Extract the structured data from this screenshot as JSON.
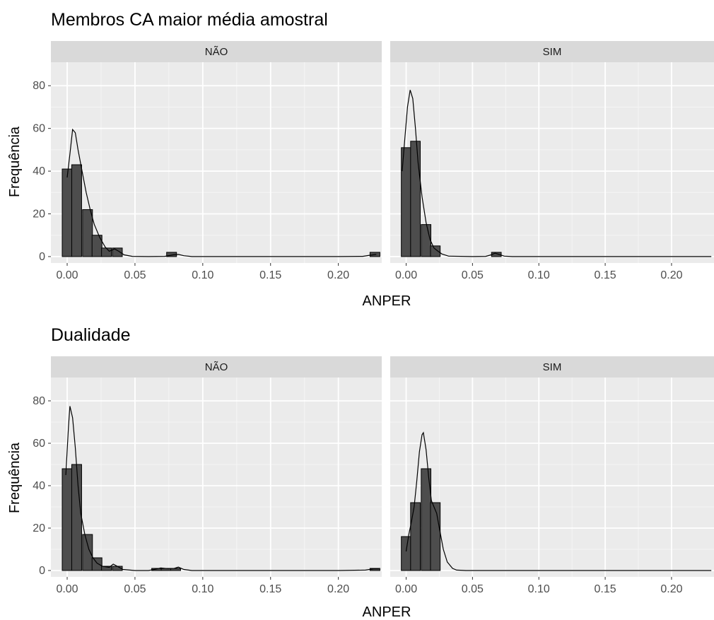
{
  "chart_data": [
    {
      "type": "bar",
      "title": "Membros CA maior média amostral",
      "xlabel": "ANPER",
      "ylabel": "Frequência",
      "xlim": [
        -0.012,
        0.232
      ],
      "ylim": [
        -3,
        91
      ],
      "x_ticks": [
        0,
        0.05,
        0.1,
        0.15,
        0.2
      ],
      "x_tick_labels": [
        "0.00",
        "0.05",
        "0.10",
        "0.15",
        "0.20"
      ],
      "y_ticks": [
        0,
        20,
        40,
        60,
        80
      ],
      "y_tick_labels": [
        "0",
        "20",
        "40",
        "60",
        "80"
      ],
      "bin_width": 0.0073,
      "grid": true,
      "facets": [
        {
          "label": "NÃO",
          "bins": [
            {
              "x": 0.0,
              "count": 41
            },
            {
              "x": 0.007,
              "count": 43
            },
            {
              "x": 0.015,
              "count": 22
            },
            {
              "x": 0.022,
              "count": 10
            },
            {
              "x": 0.029,
              "count": 4
            },
            {
              "x": 0.037,
              "count": 4
            },
            {
              "x": 0.077,
              "count": 2
            },
            {
              "x": 0.227,
              "count": 2
            }
          ],
          "density": [
            [
              0,
              37
            ],
            [
              0.002,
              48
            ],
            [
              0.004,
              59.5
            ],
            [
              0.006,
              58
            ],
            [
              0.008,
              50
            ],
            [
              0.011,
              40
            ],
            [
              0.014,
              30
            ],
            [
              0.017,
              22
            ],
            [
              0.02,
              15
            ],
            [
              0.024,
              9
            ],
            [
              0.028,
              4.5
            ],
            [
              0.031,
              2.5
            ],
            [
              0.035,
              3.6
            ],
            [
              0.038,
              2.5
            ],
            [
              0.042,
              0.8
            ],
            [
              0.048,
              0.1
            ],
            [
              0.06,
              0
            ],
            [
              0.072,
              0.1
            ],
            [
              0.078,
              0.8
            ],
            [
              0.082,
              1
            ],
            [
              0.086,
              0.4
            ],
            [
              0.092,
              0
            ],
            [
              0.12,
              0
            ],
            [
              0.16,
              0
            ],
            [
              0.2,
              0
            ],
            [
              0.218,
              0.1
            ],
            [
              0.223,
              0.6
            ],
            [
              0.228,
              1
            ]
          ]
        },
        {
          "label": "SIM",
          "bins": [
            {
              "x": 0.0,
              "count": 51
            },
            {
              "x": 0.007,
              "count": 54
            },
            {
              "x": 0.015,
              "count": 15
            },
            {
              "x": 0.022,
              "count": 5
            },
            {
              "x": 0.068,
              "count": 2
            }
          ],
          "density": [
            [
              -0.003,
              40
            ],
            [
              -0.001,
              55
            ],
            [
              0.001,
              70
            ],
            [
              0.003,
              78
            ],
            [
              0.005,
              74
            ],
            [
              0.007,
              60
            ],
            [
              0.009,
              44
            ],
            [
              0.012,
              28
            ],
            [
              0.015,
              16
            ],
            [
              0.018,
              8
            ],
            [
              0.021,
              4
            ],
            [
              0.024,
              2.5
            ],
            [
              0.027,
              1.2
            ],
            [
              0.032,
              0.2
            ],
            [
              0.05,
              0
            ],
            [
              0.06,
              0.1
            ],
            [
              0.064,
              0.8
            ],
            [
              0.067,
              1.6
            ],
            [
              0.07,
              1
            ],
            [
              0.074,
              0.2
            ],
            [
              0.08,
              0
            ],
            [
              0.12,
              0
            ],
            [
              0.16,
              0
            ],
            [
              0.2,
              0
            ],
            [
              0.23,
              0
            ]
          ]
        }
      ]
    },
    {
      "type": "bar",
      "title": "Dualidade",
      "xlabel": "ANPER",
      "ylabel": "Frequência",
      "xlim": [
        -0.012,
        0.232
      ],
      "ylim": [
        -3,
        91
      ],
      "x_ticks": [
        0,
        0.05,
        0.1,
        0.15,
        0.2
      ],
      "x_tick_labels": [
        "0.00",
        "0.05",
        "0.10",
        "0.15",
        "0.20"
      ],
      "y_ticks": [
        0,
        20,
        40,
        60,
        80
      ],
      "y_tick_labels": [
        "0",
        "20",
        "40",
        "60",
        "80"
      ],
      "bin_width": 0.0073,
      "grid": true,
      "facets": [
        {
          "label": "NÃO",
          "bins": [
            {
              "x": 0.0,
              "count": 48
            },
            {
              "x": 0.007,
              "count": 50
            },
            {
              "x": 0.015,
              "count": 17
            },
            {
              "x": 0.022,
              "count": 6
            },
            {
              "x": 0.029,
              "count": 2
            },
            {
              "x": 0.037,
              "count": 2
            },
            {
              "x": 0.066,
              "count": 1
            },
            {
              "x": 0.073,
              "count": 1
            },
            {
              "x": 0.08,
              "count": 1
            },
            {
              "x": 0.227,
              "count": 1
            }
          ],
          "density": [
            [
              -0.001,
              45
            ],
            [
              0.001,
              68
            ],
            [
              0.002,
              77.5
            ],
            [
              0.004,
              72
            ],
            [
              0.006,
              58
            ],
            [
              0.008,
              40
            ],
            [
              0.01,
              27
            ],
            [
              0.013,
              17
            ],
            [
              0.016,
              10
            ],
            [
              0.019,
              6
            ],
            [
              0.022,
              3.5
            ],
            [
              0.026,
              2
            ],
            [
              0.031,
              1.5
            ],
            [
              0.034,
              3
            ],
            [
              0.037,
              2
            ],
            [
              0.041,
              0.5
            ],
            [
              0.05,
              0
            ],
            [
              0.06,
              0
            ],
            [
              0.065,
              0.6
            ],
            [
              0.069,
              1.2
            ],
            [
              0.074,
              0.9
            ],
            [
              0.079,
              1
            ],
            [
              0.082,
              1.6
            ],
            [
              0.086,
              0.5
            ],
            [
              0.092,
              0
            ],
            [
              0.12,
              0
            ],
            [
              0.16,
              0
            ],
            [
              0.2,
              0
            ],
            [
              0.22,
              0.2
            ],
            [
              0.226,
              0.8
            ],
            [
              0.23,
              0.8
            ]
          ]
        },
        {
          "label": "SIM",
          "bins": [
            {
              "x": 0.0,
              "count": 16
            },
            {
              "x": 0.007,
              "count": 32
            },
            {
              "x": 0.015,
              "count": 48
            },
            {
              "x": 0.022,
              "count": 32
            }
          ],
          "density": [
            [
              0.0,
              9
            ],
            [
              0.002,
              17
            ],
            [
              0.004,
              23
            ],
            [
              0.006,
              30
            ],
            [
              0.008,
              42
            ],
            [
              0.01,
              56
            ],
            [
              0.012,
              64
            ],
            [
              0.013,
              65
            ],
            [
              0.015,
              57
            ],
            [
              0.017,
              44
            ],
            [
              0.019,
              33
            ],
            [
              0.021,
              30
            ],
            [
              0.023,
              27
            ],
            [
              0.025,
              20
            ],
            [
              0.028,
              10
            ],
            [
              0.031,
              4
            ],
            [
              0.035,
              1
            ],
            [
              0.038,
              0.2
            ],
            [
              0.045,
              0
            ],
            [
              0.08,
              0
            ],
            [
              0.12,
              0
            ],
            [
              0.16,
              0
            ],
            [
              0.2,
              0
            ],
            [
              0.23,
              0
            ]
          ]
        }
      ]
    }
  ]
}
